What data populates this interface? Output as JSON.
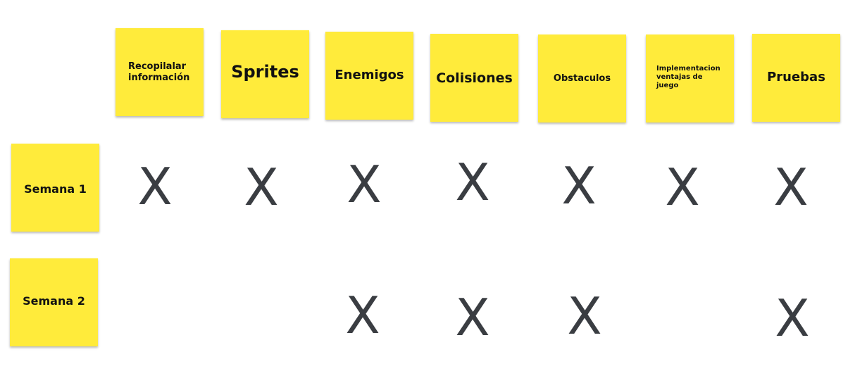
{
  "columns": [
    {
      "id": "recopilar",
      "label": "Recopilalar información"
    },
    {
      "id": "sprites",
      "label": "Sprites"
    },
    {
      "id": "enemigos",
      "label": "Enemigos"
    },
    {
      "id": "colisiones",
      "label": "Colisiones"
    },
    {
      "id": "obstaculos",
      "label": "Obstaculos"
    },
    {
      "id": "ventajas",
      "label": "Implementacion ventajas de juego"
    },
    {
      "id": "pruebas",
      "label": "Pruebas"
    }
  ],
  "rows": [
    {
      "id": "semana-1",
      "label": "Semana 1",
      "marks": [
        "X",
        "X",
        "X",
        "X",
        "X",
        "X",
        "X"
      ]
    },
    {
      "id": "semana-2",
      "label": "Semana 2",
      "marks": [
        "",
        "",
        "X",
        "X",
        "X",
        "",
        "X"
      ]
    }
  ],
  "colors": {
    "sticky_note": "#ffeb3b",
    "mark": "#3a3d42"
  }
}
